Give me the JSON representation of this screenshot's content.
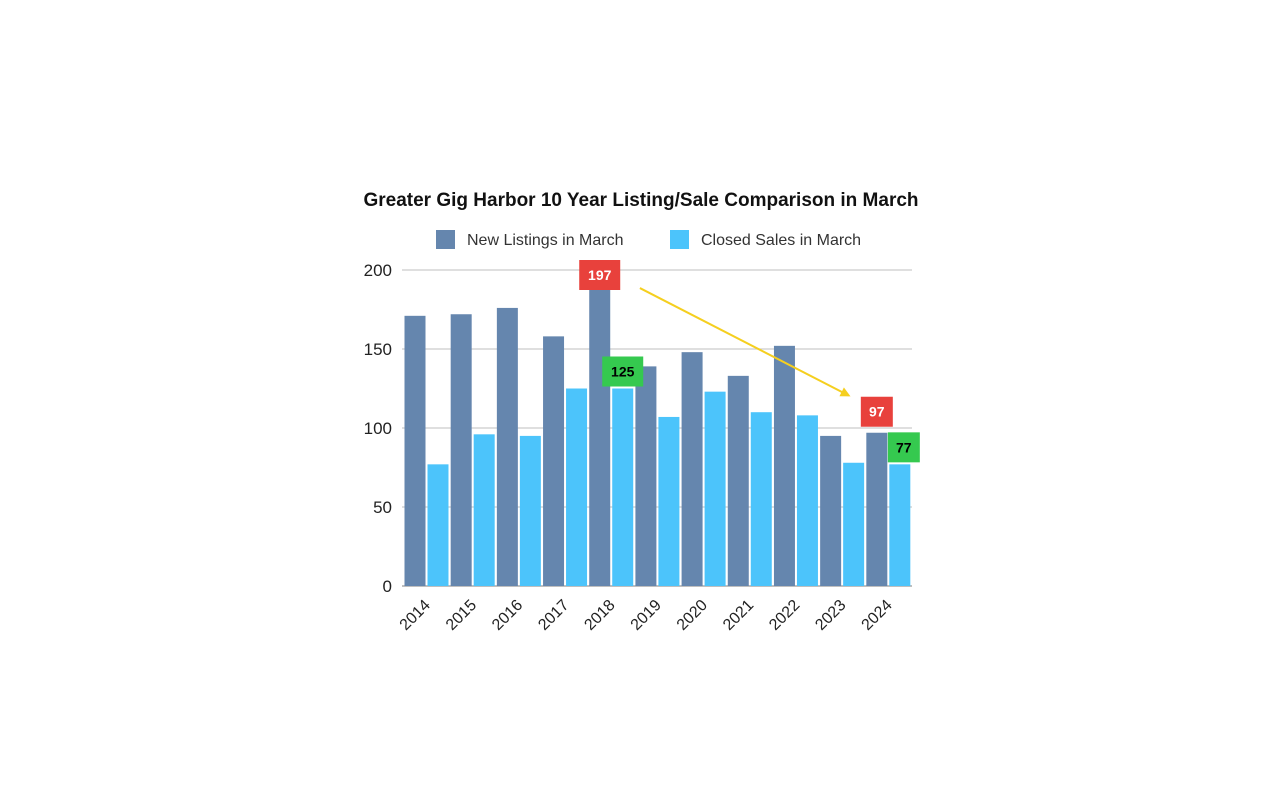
{
  "chart_data": {
    "type": "bar",
    "title": "Greater Gig Harbor 10 Year Listing/Sale Comparison in March",
    "categories": [
      "2014",
      "2015",
      "2016",
      "2017",
      "2018",
      "2019",
      "2020",
      "2021",
      "2022",
      "2023",
      "2024"
    ],
    "series": [
      {
        "name": "New Listings in March",
        "color": "#6586ae",
        "values": [
          171,
          172,
          176,
          158,
          197,
          139,
          148,
          133,
          152,
          95,
          97
        ]
      },
      {
        "name": "Closed Sales in March",
        "color": "#4cc4fb",
        "values": [
          77,
          96,
          95,
          125,
          125,
          107,
          123,
          110,
          108,
          78,
          77
        ]
      }
    ],
    "ylim": [
      0,
      200
    ],
    "yticks": [
      0,
      50,
      100,
      150,
      200
    ],
    "grid": true,
    "legend_position": "top",
    "annotations": [
      {
        "text": "197",
        "series": 0,
        "category": "2018",
        "color": "#e8413c",
        "text_color": "#ffffff"
      },
      {
        "text": "125",
        "series": 1,
        "category": "2018",
        "color": "#35c94f",
        "text_color": "#000000"
      },
      {
        "text": "97",
        "series": 0,
        "category": "2024",
        "color": "#e8413c",
        "text_color": "#ffffff"
      },
      {
        "text": "77",
        "series": 1,
        "category": "2024",
        "color": "#35c94f",
        "text_color": "#000000"
      }
    ],
    "trend_arrow": {
      "from": {
        "category": "2018",
        "value": 193
      },
      "to": {
        "category": "2023",
        "value": 125
      },
      "color": "#f5cf1f"
    }
  }
}
